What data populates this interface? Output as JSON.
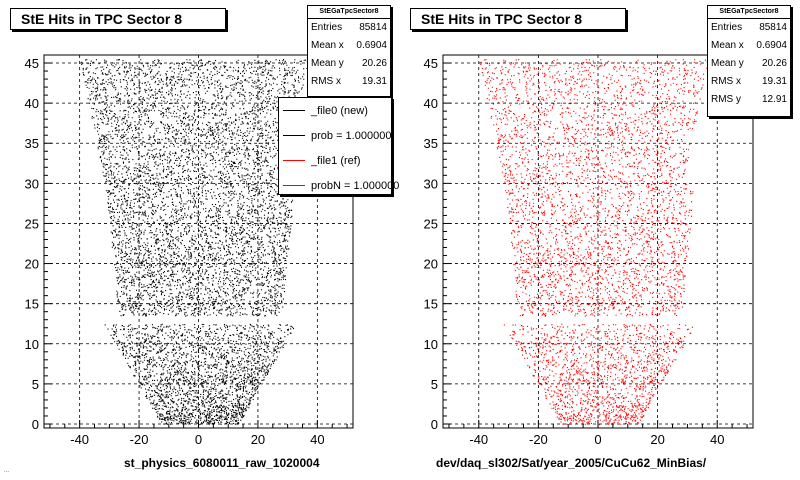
{
  "chart_data": [
    {
      "type": "scatter",
      "title": "StE Hits in TPC Sector 8",
      "xlabel": "st_physics_6080011_raw_1020004",
      "ylabel": "",
      "xlim": [
        -52,
        52
      ],
      "ylim": [
        -0.5,
        46
      ],
      "xticks": [
        -40,
        -20,
        0,
        20,
        40
      ],
      "yticks": [
        0,
        5,
        10,
        15,
        20,
        25,
        30,
        35,
        40,
        45
      ],
      "grid": true,
      "marker_color": "#000000",
      "stats": {
        "name": "StEGaTpcSector8",
        "rows": [
          {
            "label": "Entries",
            "value": "85814"
          },
          {
            "label": "Mean x",
            "value": "0.6904"
          },
          {
            "label": "Mean y",
            "value": "20.26"
          },
          {
            "label": "RMS x",
            "value": "19.31"
          }
        ]
      },
      "legend": {
        "placement": "top-right",
        "entries": [
          {
            "label": "_file0 (new)",
            "color": "#000000"
          },
          {
            "label": "prob = 1.000000",
            "color": "#000000"
          },
          {
            "label": "_file1 (ref)",
            "color": "#ff0000"
          },
          {
            "label": "probN = 1.000000",
            "color": "#ff0000"
          }
        ]
      },
      "footnote": "..."
    },
    {
      "type": "scatter",
      "title": "StE Hits in TPC Sector 8",
      "xlabel": "dev/daq_sl302/Sat/year_2005/CuCu62_MinBias/",
      "ylabel": "",
      "xlim": [
        -52,
        52
      ],
      "ylim": [
        -0.5,
        46
      ],
      "xticks": [
        -40,
        -20,
        0,
        20,
        40
      ],
      "yticks": [
        0,
        5,
        10,
        15,
        20,
        25,
        30,
        35,
        40,
        45
      ],
      "grid": true,
      "marker_color": "#ff0000",
      "stats": {
        "name": "StEGaTpcSector8",
        "rows": [
          {
            "label": "Entries",
            "value": "85814"
          },
          {
            "label": "Mean x",
            "value": "0.6904"
          },
          {
            "label": "Mean y",
            "value": "20.26"
          },
          {
            "label": "RMS x",
            "value": "19.31"
          },
          {
            "label": "RMS y",
            "value": "12.91"
          }
        ]
      }
    }
  ]
}
